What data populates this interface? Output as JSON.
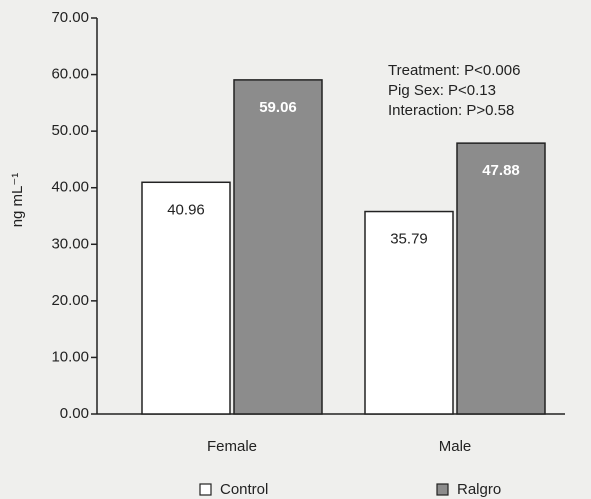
{
  "chart_data": {
    "type": "bar",
    "categories": [
      "Female",
      "Male"
    ],
    "series": [
      {
        "name": "Control",
        "color": "#ffffff",
        "values": [
          40.96,
          35.79
        ]
      },
      {
        "name": "Ralgro",
        "color": "#8c8c8c",
        "values": [
          59.06,
          47.88
        ]
      }
    ],
    "ylabel": "ng mL⁻¹",
    "ylim": [
      0,
      70
    ],
    "yticks": [
      {
        "value": 0,
        "label": "0.00"
      },
      {
        "value": 10,
        "label": "10.00"
      },
      {
        "value": 20,
        "label": "20.00"
      },
      {
        "value": 30,
        "label": "30.00"
      },
      {
        "value": 40,
        "label": "40.00"
      },
      {
        "value": 50,
        "label": "50.00"
      },
      {
        "value": 60,
        "label": "60.00"
      },
      {
        "value": 70,
        "label": "70.00"
      }
    ],
    "annotations": [
      "Treatment: P<0.006",
      "Pig Sex: P<0.13",
      "Interaction: P>0.58"
    ],
    "legend": "bottom"
  }
}
